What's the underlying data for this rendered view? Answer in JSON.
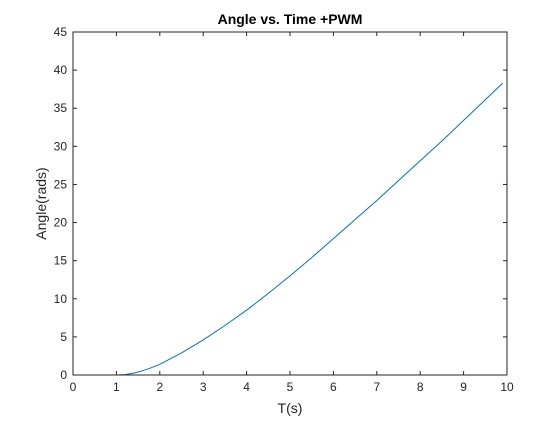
{
  "chart_data": {
    "type": "line",
    "title": "Angle vs. Time +PWM",
    "xlabel": "T(s)",
    "ylabel": "Angle(rads)",
    "xlim": [
      0,
      10
    ],
    "ylim": [
      0,
      45
    ],
    "xticks": [
      0,
      1,
      2,
      3,
      4,
      5,
      6,
      7,
      8,
      9,
      10
    ],
    "yticks": [
      0,
      5,
      10,
      15,
      20,
      25,
      30,
      35,
      40,
      45
    ],
    "xtick_labels": [
      "0",
      "1",
      "2",
      "3",
      "4",
      "5",
      "6",
      "7",
      "8",
      "9",
      "10"
    ],
    "ytick_labels": [
      "0",
      "5",
      "10",
      "15",
      "20",
      "25",
      "30",
      "35",
      "40",
      "45"
    ],
    "grid": false,
    "box": true,
    "series": [
      {
        "color": "#0072BD",
        "x": [
          0,
          0.5,
          1.0,
          1.2,
          1.4,
          1.6,
          1.8,
          2.0,
          2.5,
          3.0,
          3.5,
          4.0,
          4.5,
          5.0,
          5.5,
          6.0,
          6.5,
          7.0,
          7.5,
          8.0,
          8.5,
          9.0,
          9.5,
          9.9
        ],
        "y": [
          0,
          0,
          0,
          0.05,
          0.25,
          0.55,
          0.95,
          1.4,
          2.9,
          4.6,
          6.5,
          8.5,
          10.7,
          13.0,
          15.4,
          17.9,
          20.4,
          22.9,
          25.5,
          28.1,
          30.7,
          33.4,
          36.1,
          38.3
        ]
      }
    ]
  }
}
